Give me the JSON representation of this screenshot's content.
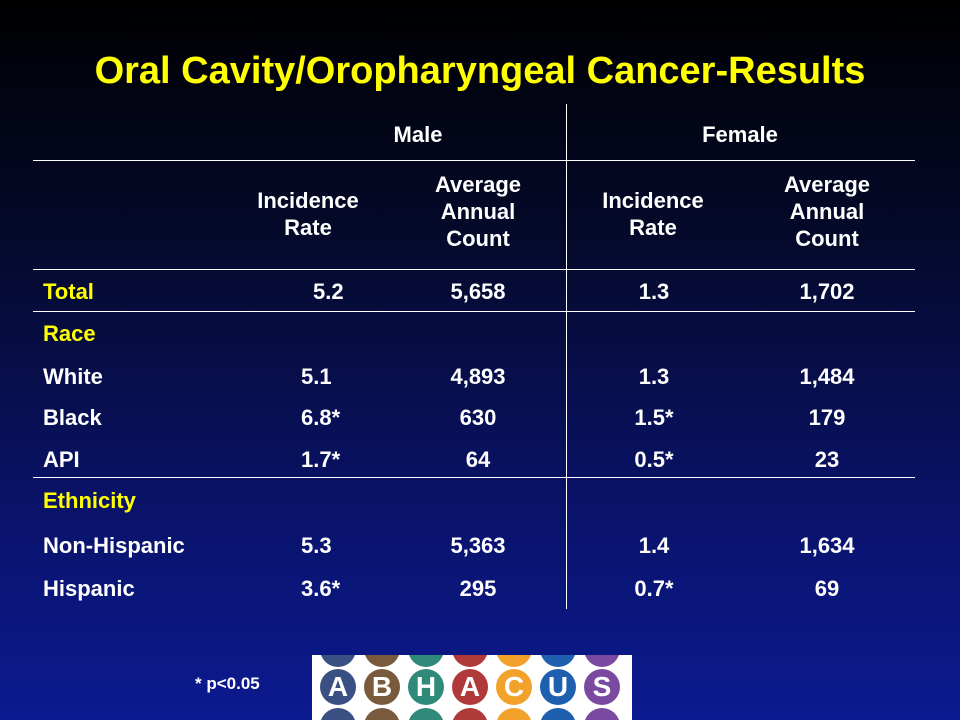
{
  "title": "Oral Cavity/Oropharyngeal  Cancer-Results",
  "header": {
    "male": "Male",
    "female": "Female",
    "incidence_rate_line1": "Incidence",
    "incidence_rate_line2": "Rate",
    "avg_line1": "Average",
    "avg_line2": "Annual",
    "avg_line3": "Count"
  },
  "rows": [
    {
      "label": "Total",
      "male_rate": "5.2",
      "male_count": "5,658",
      "female_rate": "1.3",
      "female_count": "1,702"
    },
    {
      "label": "Race"
    },
    {
      "label": "White",
      "male_rate": "5.1",
      "male_count": "4,893",
      "female_rate": "1.3",
      "female_count": "1,484"
    },
    {
      "label": "Black",
      "male_rate": "6.8*",
      "male_count": "630",
      "female_rate": "1.5*",
      "female_count": "179"
    },
    {
      "label": "API",
      "male_rate": "1.7*",
      "male_count": "64",
      "female_rate": "0.5*",
      "female_count": "23"
    },
    {
      "label": "Ethnicity"
    },
    {
      "label": "Non-Hispanic",
      "male_rate": "5.3",
      "male_count": "5,363",
      "female_rate": "1.4",
      "female_count": "1,634"
    },
    {
      "label": "Hispanic",
      "male_rate": "3.6*",
      "male_count": "295",
      "female_rate": "0.7*",
      "female_count": "69"
    }
  ],
  "footnote": "* p<0.05",
  "logo": {
    "letters": [
      "A",
      "B",
      "H",
      "A",
      "C",
      "U",
      "S"
    ],
    "colors": [
      "#3a4f82",
      "#7a5a3c",
      "#2f8a7a",
      "#b03a3a",
      "#f2a22a",
      "#1f5fb0",
      "#7a4aa0"
    ]
  }
}
